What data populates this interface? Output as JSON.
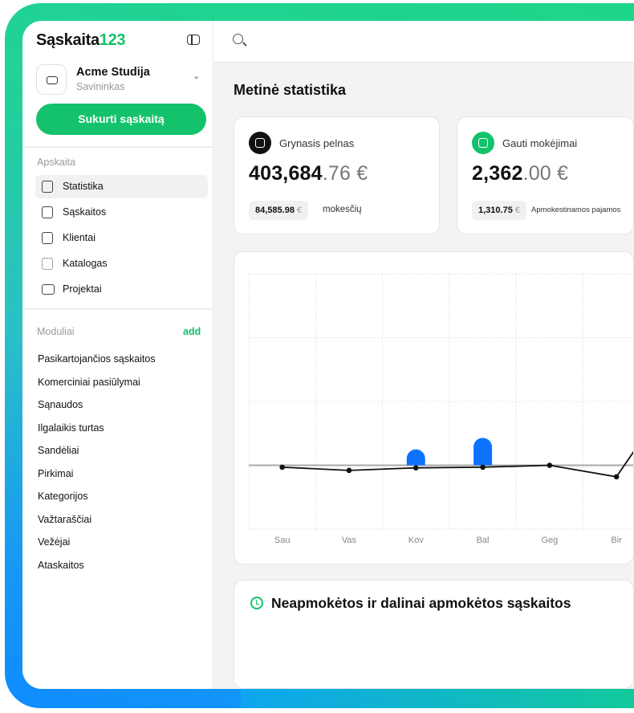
{
  "brand": {
    "name": "Sąskaita",
    "suffix": "123",
    "accent": "#13c26a"
  },
  "org": {
    "name": "Acme Studija",
    "role": "Savininkas"
  },
  "create_button": "Sukurti sąskaitą",
  "sidebar": {
    "section_accounting": "Apskaita",
    "items": [
      {
        "label": "Statistika",
        "icon": "bar-chart-icon",
        "active": true
      },
      {
        "label": "Sąskaitos",
        "icon": "document-icon"
      },
      {
        "label": "Klientai",
        "icon": "contact-icon"
      },
      {
        "label": "Katalogas",
        "icon": "grid-icon"
      },
      {
        "label": "Projektai",
        "icon": "folder-icon"
      }
    ],
    "section_modules": "Moduliai",
    "add_label": "add",
    "modules": [
      "Pasikartojančios sąskaitos",
      "Komerciniai pasiūlymai",
      "Sąnaudos",
      "Ilgalaikis turtas",
      "Sandėliai",
      "Pirkimai",
      "Kategorijos",
      "Važtaraščiai",
      "Vežėjai",
      "Ataskaitos"
    ]
  },
  "main": {
    "title": "Metinė statistika",
    "kpis": [
      {
        "label": "Grynasis pelnas",
        "int": "403,684",
        "dec": ".76 €",
        "pill": "84,585.98",
        "pill_cur": "€",
        "note": "mokesčių",
        "icon": "database-icon",
        "icon_color": "#111111"
      },
      {
        "label": "Gauti mokėjimai",
        "int": "2,362",
        "dec": ".00 €",
        "pill": "1,310.75",
        "pill_cur": "€",
        "note": "Apmokestinamos pajamos",
        "icon": "check-square-icon",
        "icon_color": "#13c26a"
      }
    ],
    "unpaid_title": "Neapmokėtos ir dalinai apmokėtos sąskaitos"
  },
  "chart_data": {
    "type": "bar+line",
    "categories": [
      "Sau",
      "Vas",
      "Kov",
      "Bal",
      "Geg",
      "Bir",
      ""
    ],
    "bars": {
      "values": [
        0,
        0,
        25,
        43,
        0,
        0,
        0
      ],
      "color": "#0f72ff"
    },
    "line": {
      "values": [
        -3,
        -8,
        -4,
        -3,
        0,
        -18,
        135
      ],
      "color": "#111111"
    },
    "ylim": [
      -100,
      300
    ],
    "grid": true,
    "title": "",
    "xlabel": "",
    "ylabel": ""
  }
}
